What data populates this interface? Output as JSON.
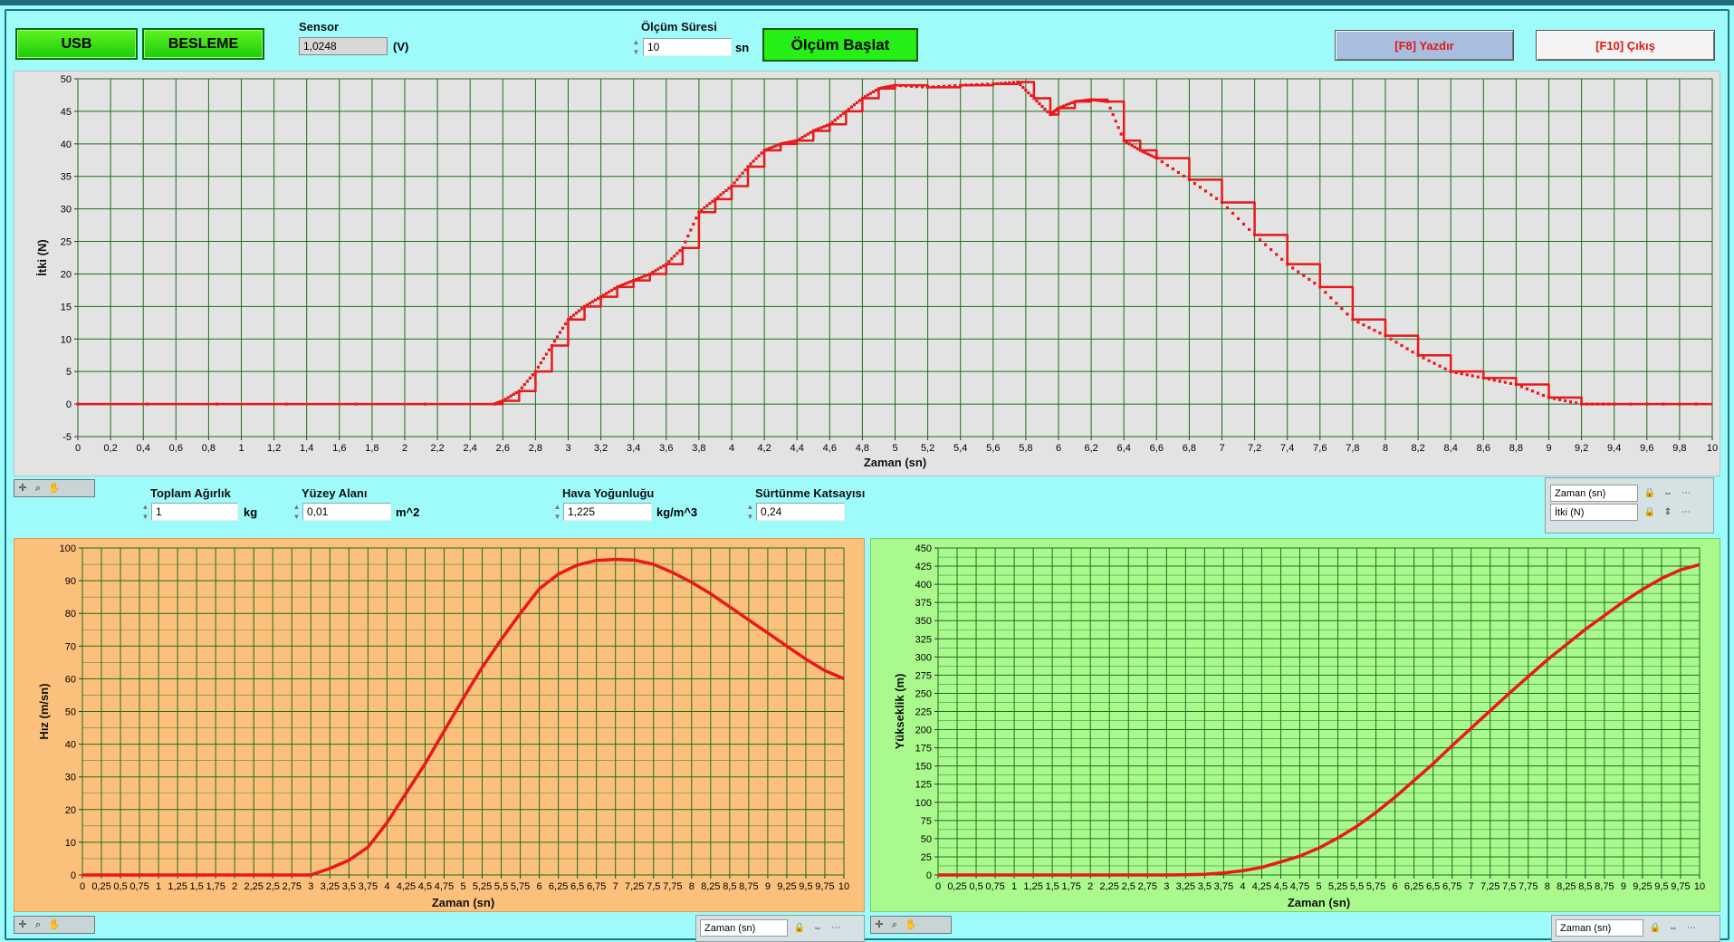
{
  "controls": {
    "usb_label": "USB",
    "besleme_label": "BESLEME",
    "sensor_label": "Sensor",
    "sensor_value": "1,0248",
    "sensor_unit": "(V)",
    "olcum_suresi_label": "Ölçüm Süresi",
    "olcum_suresi_value": "10",
    "olcum_suresi_unit": "sn",
    "start_label": "Ölçüm Başlat",
    "print_label": "[F8] Yazdır",
    "exit_label": "[F10] Çıkış"
  },
  "params": {
    "toplam_agirlik_label": "Toplam Ağırlık",
    "toplam_agirlik_value": "1",
    "toplam_agirlik_unit": "kg",
    "yuzey_alani_label": "Yüzey Alanı",
    "yuzey_alani_value": "0,01",
    "yuzey_alani_unit": "m^2",
    "hava_yogunlugu_label": "Hava Yoğunluğu",
    "hava_yogunlugu_value": "1,225",
    "hava_yogunlugu_unit": "kg/m^3",
    "surtunme_label": "Sürtünme Katsayısı",
    "surtunme_value": "0,24"
  },
  "legend_top": {
    "x_name": "Zaman (sn)",
    "y_name": "İtki (N)"
  },
  "legend_left": {
    "x_name": "Zaman (sn)"
  },
  "legend_right": {
    "x_name": "Zaman (sn)"
  },
  "colors": {
    "plot_line": "#e8191a",
    "grid": "#1e6e1e",
    "top_bg": "#e3e3e3",
    "left_bg": "#fbc07b",
    "right_bg": "#a9f98d",
    "app_bg": "#9ffafa"
  },
  "chart_data": [
    {
      "type": "line",
      "xlabel": "Zaman (sn)",
      "ylabel": "İtki (N)",
      "xlim": [
        0,
        10
      ],
      "ylim": [
        -5,
        50
      ],
      "xticks": [
        "0",
        "0,2",
        "0,4",
        "0,6",
        "0,8",
        "1",
        "1,2",
        "1,4",
        "1,6",
        "1,8",
        "2",
        "2,2",
        "2,4",
        "2,6",
        "2,8",
        "3",
        "3,2",
        "3,4",
        "3,6",
        "3,8",
        "4",
        "4,2",
        "4,4",
        "4,6",
        "4,8",
        "5",
        "5,2",
        "5,4",
        "5,6",
        "5,8",
        "6",
        "6,2",
        "6,4",
        "6,6",
        "6,8",
        "7",
        "7,2",
        "7,4",
        "7,6",
        "7,8",
        "8",
        "8,2",
        "8,4",
        "8,6",
        "8,8",
        "9",
        "9,2",
        "9,4",
        "9,6",
        "9,8",
        "10"
      ],
      "yticks": [
        "50",
        "45",
        "40",
        "35",
        "30",
        "25",
        "20",
        "15",
        "10",
        "5",
        "0",
        "-5"
      ],
      "series": [
        {
          "x": [
            0,
            2.55,
            2.6,
            2.7,
            2.8,
            2.9,
            3.0,
            3.1,
            3.2,
            3.3,
            3.4,
            3.5,
            3.6,
            3.7,
            3.8,
            3.9,
            4.0,
            4.1,
            4.2,
            4.3,
            4.4,
            4.5,
            4.6,
            4.7,
            4.8,
            4.9,
            5.0,
            5.2,
            5.4,
            5.6,
            5.75,
            5.85,
            5.95,
            6.0,
            6.1,
            6.2,
            6.3,
            6.4,
            6.5,
            6.6,
            6.8,
            7.0,
            7.2,
            7.4,
            7.6,
            7.8,
            8.0,
            8.2,
            8.4,
            8.6,
            8.8,
            9.0,
            9.2,
            9.4,
            10.0
          ],
          "y": [
            0,
            0,
            0.5,
            2,
            5,
            9,
            13,
            15,
            16.5,
            18,
            19,
            20,
            21.5,
            24,
            29.5,
            31.5,
            33.5,
            36.5,
            39,
            40,
            40.5,
            42,
            43,
            45,
            47,
            48.5,
            49,
            48.7,
            49,
            49.2,
            49.5,
            47,
            44.5,
            45.5,
            46.5,
            46.8,
            46.5,
            40.5,
            39,
            37.8,
            34.5,
            31,
            26,
            21.5,
            18,
            13,
            10.5,
            7.5,
            5,
            4,
            3,
            1,
            0,
            0,
            0
          ]
        }
      ]
    },
    {
      "type": "line",
      "xlabel": "Zaman (sn)",
      "ylabel": "Hız (m/sn)",
      "xlim": [
        0,
        10
      ],
      "ylim": [
        0,
        100
      ],
      "xticks": [
        "0",
        "0,25",
        "0,5",
        "0,75",
        "1",
        "1,25",
        "1,5",
        "1,75",
        "2",
        "2,25",
        "2,5",
        "2,75",
        "3",
        "3,25",
        "3,5",
        "3,75",
        "4",
        "4,25",
        "4,5",
        "4,75",
        "5",
        "5,25",
        "5,5",
        "5,75",
        "6",
        "6,25",
        "6,5",
        "6,75",
        "7",
        "7,25",
        "7,5",
        "7,75",
        "8",
        "8,25",
        "8,5",
        "8,75",
        "9",
        "9,25",
        "9,5",
        "9,75",
        "10"
      ],
      "yticks": [
        "100",
        "90",
        "80",
        "70",
        "60",
        "50",
        "40",
        "30",
        "20",
        "10",
        "0"
      ],
      "series": [
        {
          "x": [
            0,
            3.0,
            3.25,
            3.5,
            3.75,
            4.0,
            4.25,
            4.5,
            4.75,
            5.0,
            5.25,
            5.5,
            5.75,
            6.0,
            6.25,
            6.5,
            6.75,
            7.0,
            7.25,
            7.5,
            7.75,
            8.0,
            8.25,
            8.5,
            8.75,
            9.0,
            9.25,
            9.5,
            9.75,
            10.0
          ],
          "y": [
            0,
            0,
            2,
            4.5,
            8.5,
            16,
            25,
            34,
            44,
            54,
            63.5,
            72,
            80,
            87.5,
            92,
            94.8,
            96.2,
            96.5,
            96.3,
            95,
            92.5,
            89.5,
            86,
            82,
            78,
            74,
            70,
            66,
            62.5,
            60
          ]
        }
      ]
    },
    {
      "type": "line",
      "xlabel": "Zaman (sn)",
      "ylabel": "Yükseklik (m)",
      "xlim": [
        0,
        10
      ],
      "ylim": [
        0,
        450
      ],
      "xticks": [
        "0",
        "0,25",
        "0,5",
        "0,75",
        "1",
        "1,25",
        "1,5",
        "1,75",
        "2",
        "2,25",
        "2,5",
        "2,75",
        "3",
        "3,25",
        "3,5",
        "3,75",
        "4",
        "4,25",
        "4,5",
        "4,75",
        "5",
        "5,25",
        "5,5",
        "5,75",
        "6",
        "6,25",
        "6,5",
        "6,75",
        "7",
        "7,25",
        "7,5",
        "7,75",
        "8",
        "8,25",
        "8,5",
        "8,75",
        "9",
        "9,25",
        "9,5",
        "9,75",
        "10"
      ],
      "yticks": [
        "450",
        "425",
        "400",
        "375",
        "350",
        "325",
        "300",
        "275",
        "250",
        "225",
        "200",
        "175",
        "150",
        "125",
        "100",
        "75",
        "50",
        "25",
        "0"
      ],
      "series": [
        {
          "x": [
            0,
            3.0,
            3.25,
            3.5,
            3.75,
            4.0,
            4.25,
            4.5,
            4.75,
            5.0,
            5.25,
            5.5,
            5.75,
            6.0,
            6.25,
            6.5,
            6.75,
            7.0,
            7.25,
            7.5,
            7.75,
            8.0,
            8.25,
            8.5,
            8.75,
            9.0,
            9.25,
            9.5,
            9.75,
            10.0
          ],
          "y": [
            0,
            0,
            0.3,
            1,
            2.8,
            5.8,
            10.5,
            18,
            26,
            37,
            51,
            67,
            86,
            107,
            130,
            153,
            178,
            202,
            226,
            250,
            273,
            296,
            317,
            338,
            357,
            376,
            393,
            408,
            420,
            427
          ]
        }
      ]
    }
  ]
}
